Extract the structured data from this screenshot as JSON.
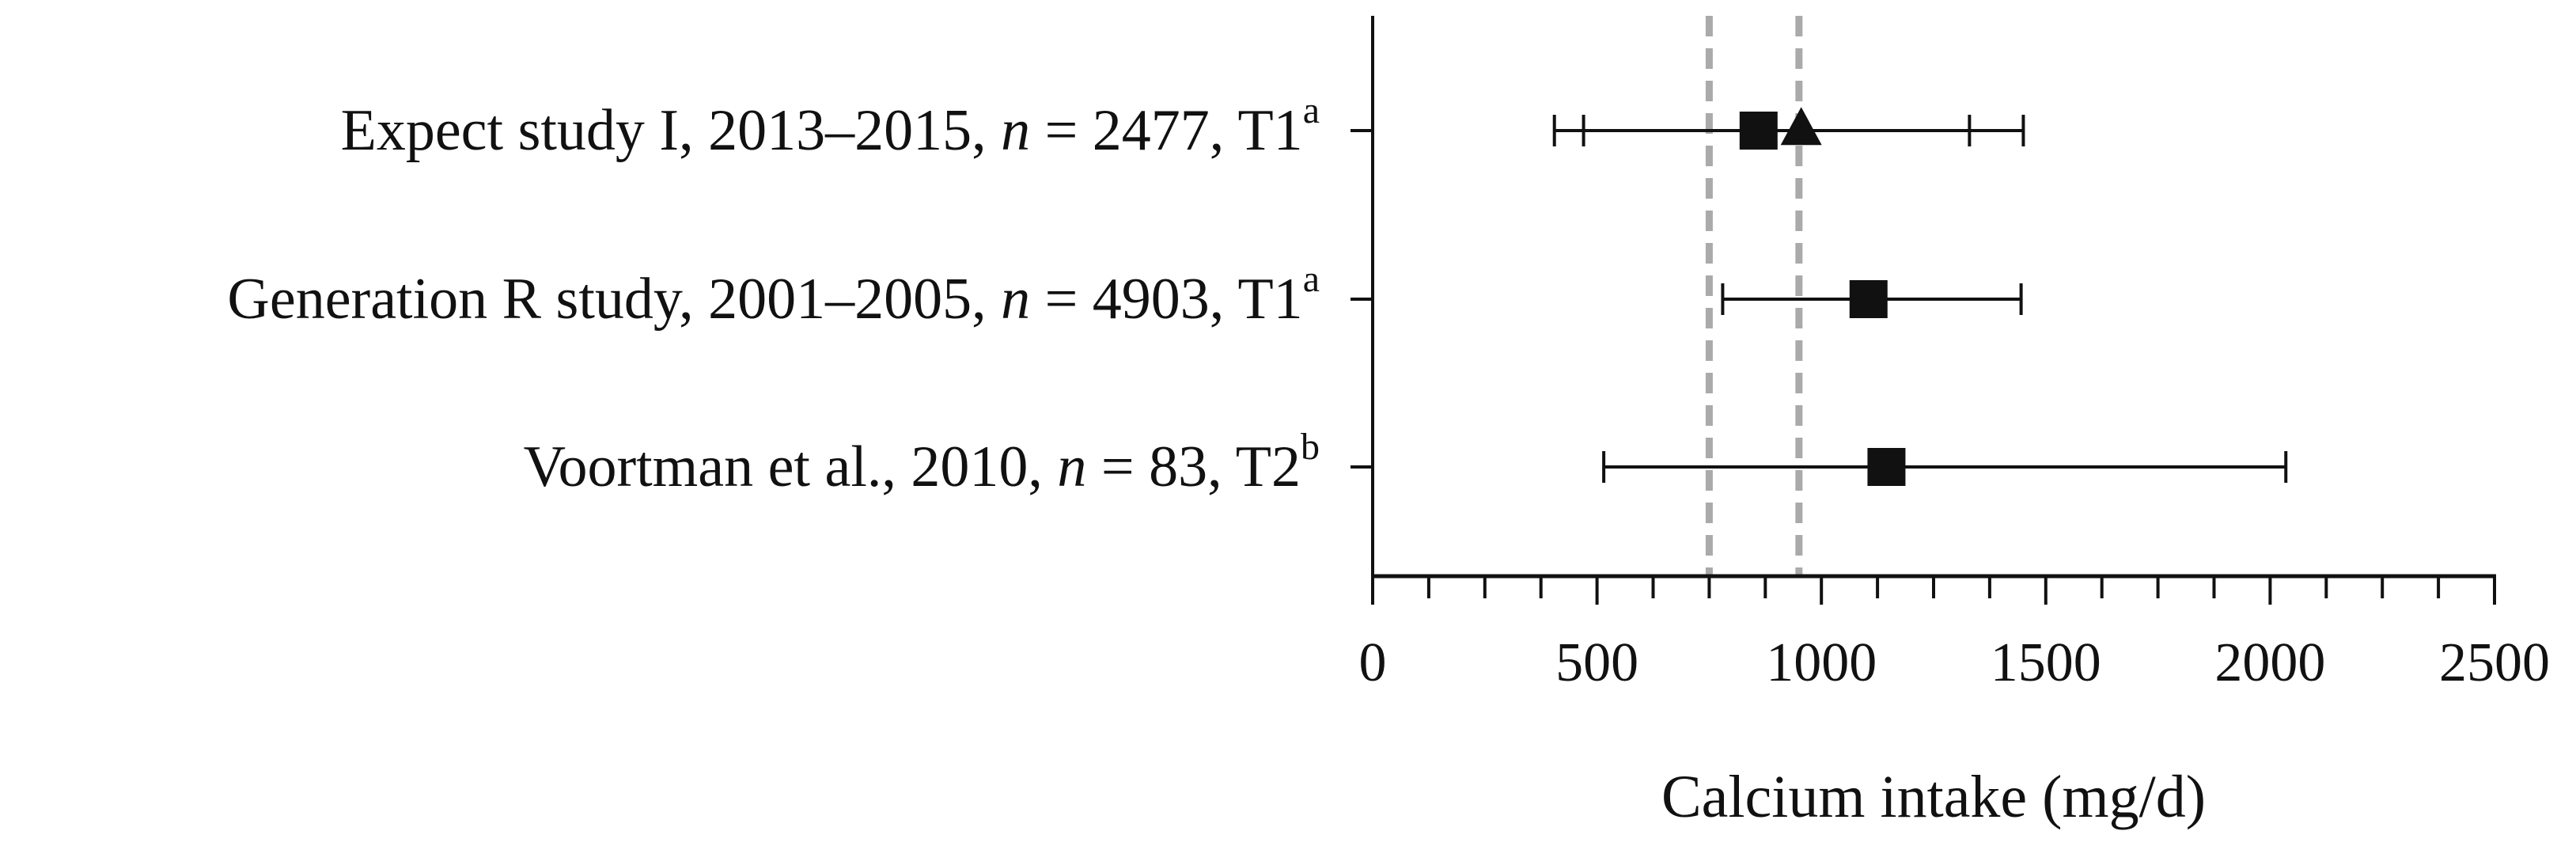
{
  "chart_data": {
    "type": "scatter",
    "subtype": "forest-plot",
    "title": "",
    "xlabel": "Calcium intake (mg/d)",
    "ylabel": "",
    "xlim": [
      0,
      2500
    ],
    "x_ticks": [
      0,
      500,
      1000,
      1500,
      2000,
      2500
    ],
    "x_tick_labels": [
      "0",
      "500",
      "1000",
      "1500",
      "2000",
      "2500"
    ],
    "minor_tick_step": 125,
    "grid": false,
    "legend": "none",
    "reference_lines": [
      {
        "x": 750,
        "style": "dashed",
        "color": "#aaaaaa"
      },
      {
        "x": 950,
        "style": "dashed",
        "color": "#aaaaaa"
      }
    ],
    "rows": [
      {
        "label_parts": [
          {
            "text": "Expect study I, 2013–2015, ",
            "style": "normal"
          },
          {
            "text": "n",
            "style": "italic"
          },
          {
            "text": " = 2477, T1",
            "style": "normal"
          },
          {
            "text": "a",
            "style": "superscript"
          }
        ],
        "points": [
          {
            "marker": "square",
            "value": 860,
            "low": 470,
            "high": 1330
          },
          {
            "marker": "triangle",
            "value": 955,
            "low": 405,
            "high": 1450
          }
        ]
      },
      {
        "label_parts": [
          {
            "text": "Generation R study, 2001–2005, ",
            "style": "normal"
          },
          {
            "text": "n",
            "style": "italic"
          },
          {
            "text": " = 4903, T1",
            "style": "normal"
          },
          {
            "text": "a",
            "style": "superscript"
          }
        ],
        "points": [
          {
            "marker": "square",
            "value": 1105,
            "low": 780,
            "high": 1445
          }
        ]
      },
      {
        "label_parts": [
          {
            "text": "Voortman et al., 2010, ",
            "style": "normal"
          },
          {
            "text": "n",
            "style": "italic"
          },
          {
            "text": " = 83, T2",
            "style": "normal"
          },
          {
            "text": "b",
            "style": "superscript"
          }
        ],
        "points": [
          {
            "marker": "square",
            "value": 1145,
            "low": 515,
            "high": 2035
          }
        ]
      }
    ],
    "colors": {
      "marks": "#111111",
      "reference": "#aaaaaa"
    }
  }
}
